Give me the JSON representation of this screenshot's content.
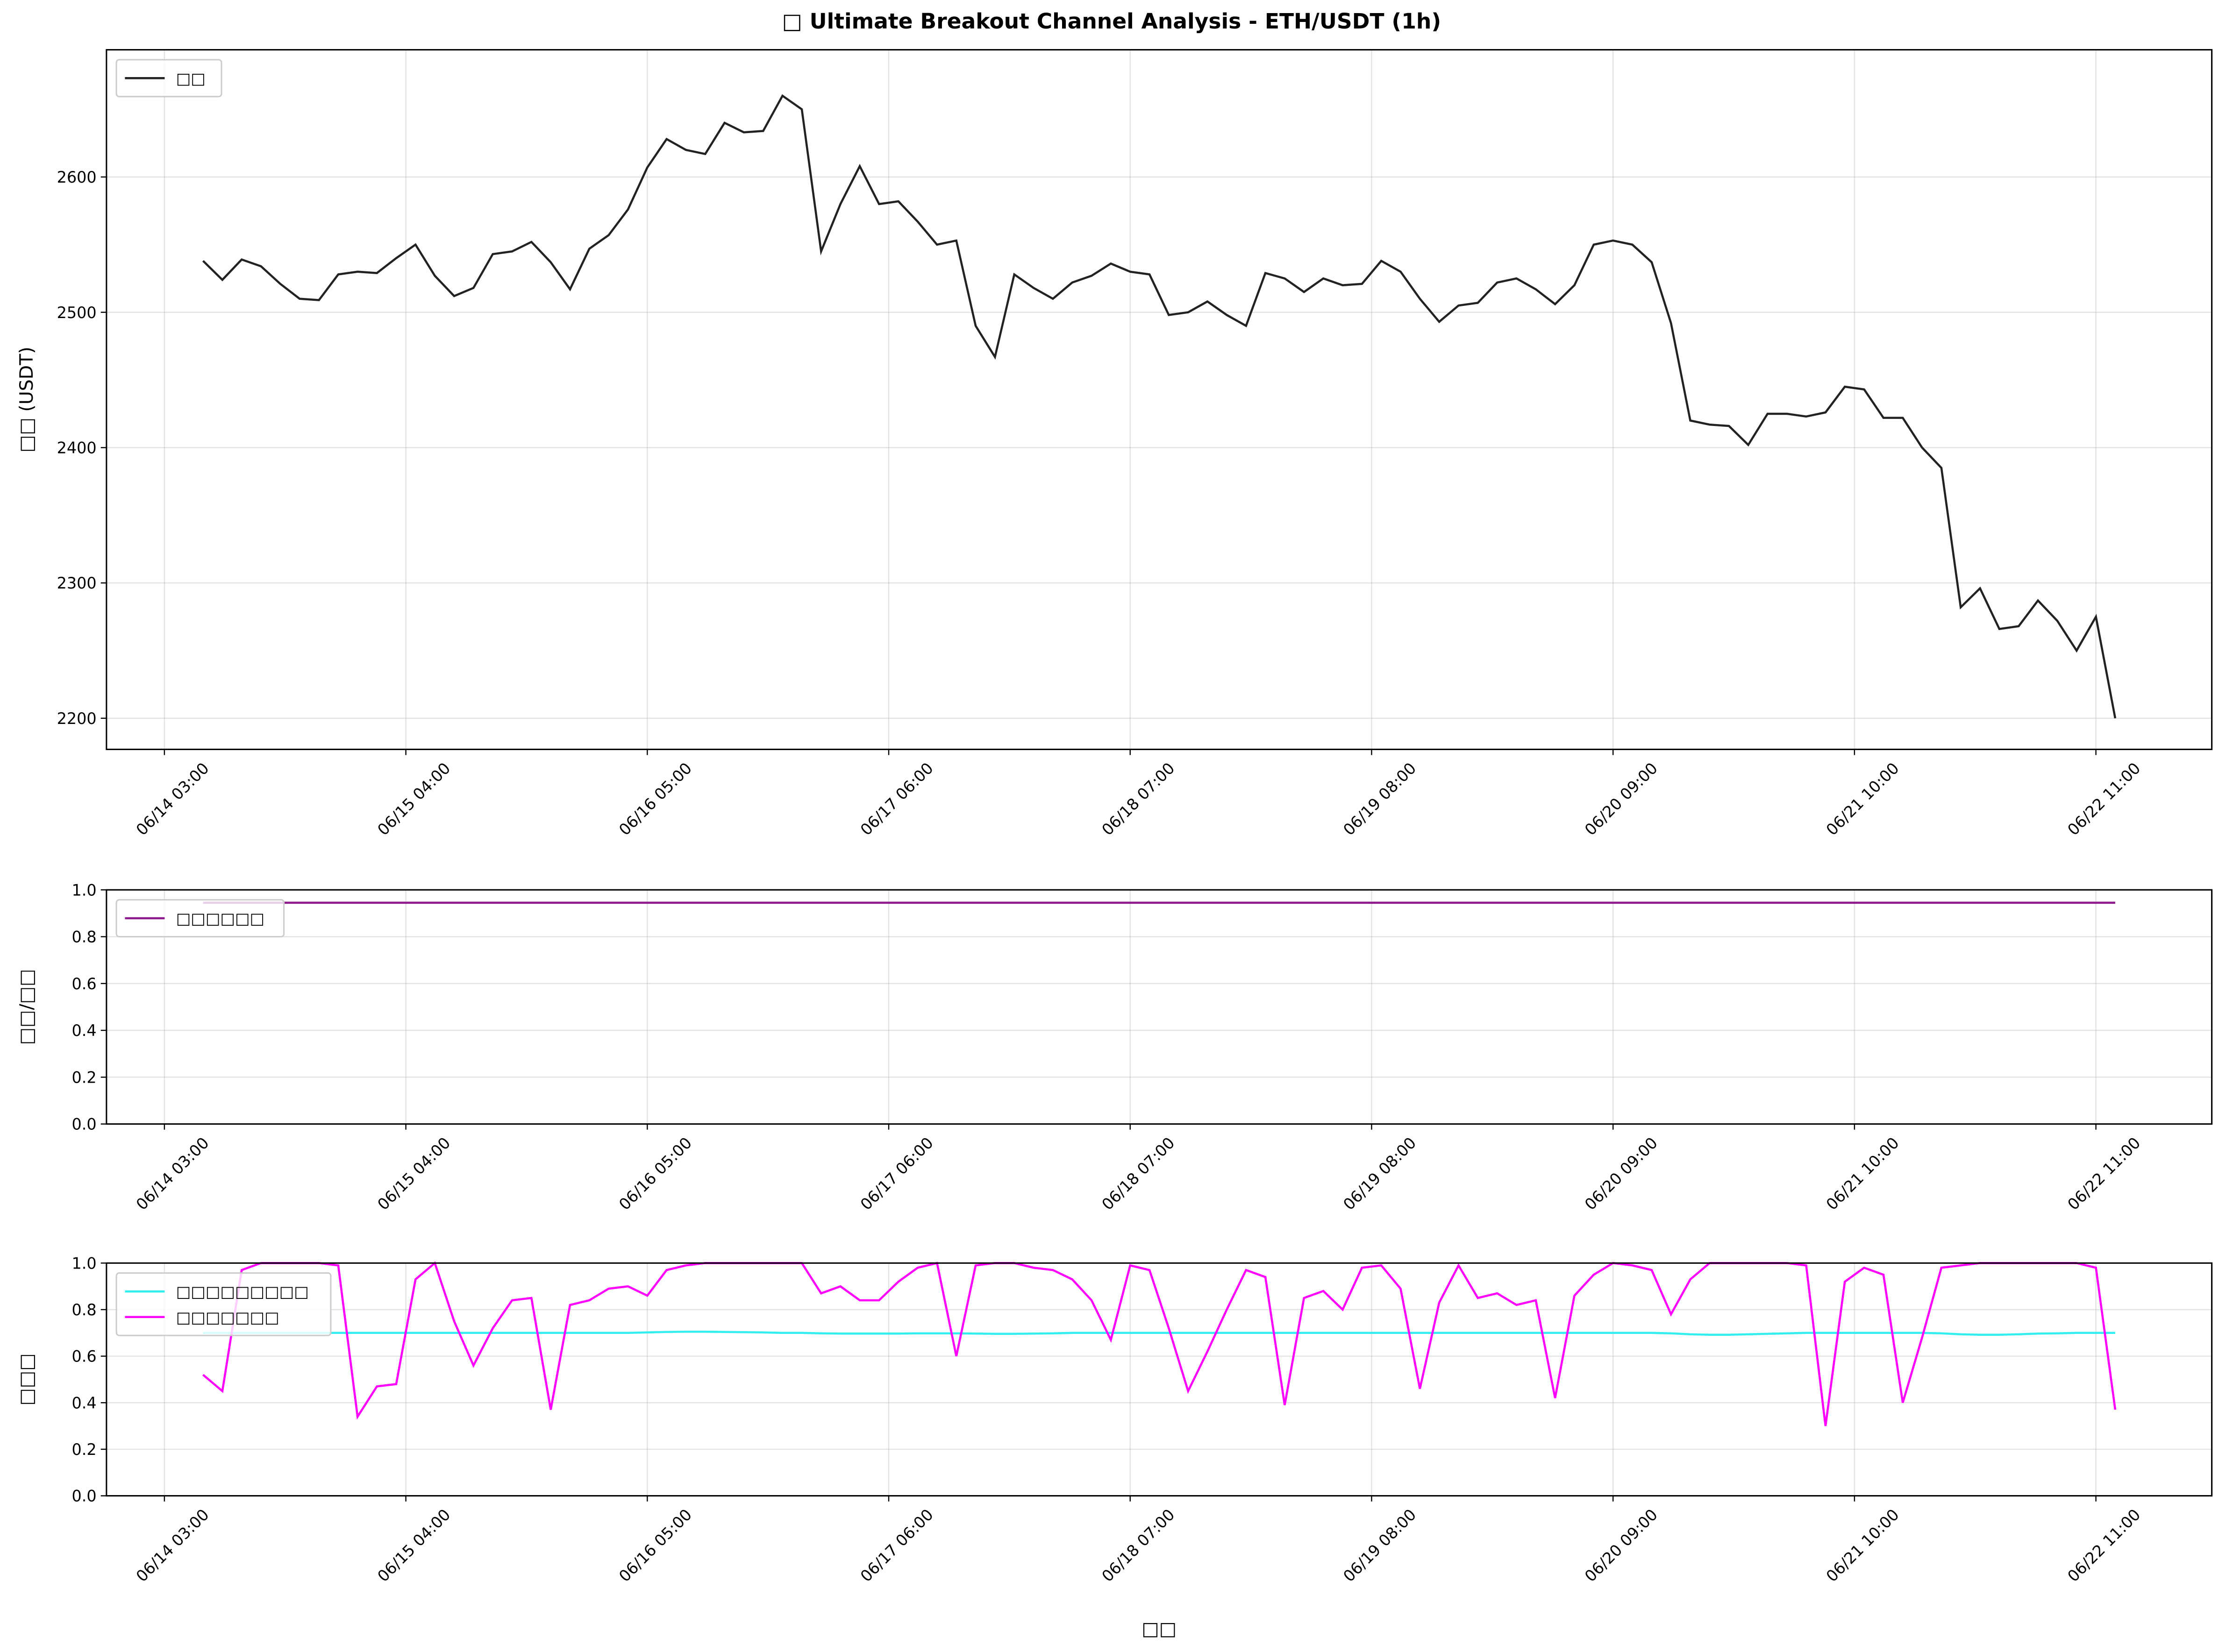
{
  "chart_data": [
    {
      "type": "line",
      "title": "□ Ultimate Breakout Channel Analysis - ETH/USDT (1h)",
      "ylabel": "□□ (USDT)",
      "xlim": [
        "06/13 21:00",
        "06/22 23:00"
      ],
      "xticks": [
        "06/14 03:00",
        "06/15 04:00",
        "06/16 05:00",
        "06/17 06:00",
        "06/18 07:00",
        "06/19 08:00",
        "06/20 09:00",
        "06/21 10:00",
        "06/22 11:00"
      ],
      "ylim": [
        2177,
        2694
      ],
      "yticks": [
        2200,
        2300,
        2400,
        2500,
        2600
      ],
      "grid": true,
      "legend": "upper left",
      "x": [
        "06/14 07:00",
        "06/14 09:00",
        "06/14 11:00",
        "06/14 13:00",
        "06/14 15:00",
        "06/14 17:00",
        "06/14 19:00",
        "06/14 21:00",
        "06/14 23:00",
        "06/15 01:00",
        "06/15 03:00",
        "06/15 05:00",
        "06/15 07:00",
        "06/15 09:00",
        "06/15 11:00",
        "06/15 13:00",
        "06/15 15:00",
        "06/15 17:00",
        "06/15 19:00",
        "06/15 21:00",
        "06/15 23:00",
        "06/16 01:00",
        "06/16 03:00",
        "06/16 05:00",
        "06/16 07:00",
        "06/16 09:00",
        "06/16 11:00",
        "06/16 13:00",
        "06/16 15:00",
        "06/16 17:00",
        "06/16 19:00",
        "06/16 21:00",
        "06/16 23:00",
        "06/17 01:00",
        "06/17 03:00",
        "06/17 05:00",
        "06/17 07:00",
        "06/17 09:00",
        "06/17 11:00",
        "06/17 13:00",
        "06/17 15:00",
        "06/17 17:00",
        "06/17 19:00",
        "06/17 21:00",
        "06/17 23:00",
        "06/18 01:00",
        "06/18 03:00",
        "06/18 05:00",
        "06/18 07:00",
        "06/18 09:00",
        "06/18 11:00",
        "06/18 13:00",
        "06/18 15:00",
        "06/18 17:00",
        "06/18 19:00",
        "06/18 21:00",
        "06/18 23:00",
        "06/19 01:00",
        "06/19 03:00",
        "06/19 05:00",
        "06/19 07:00",
        "06/19 09:00",
        "06/19 11:00",
        "06/19 13:00",
        "06/19 15:00",
        "06/19 17:00",
        "06/19 19:00",
        "06/19 21:00",
        "06/19 23:00",
        "06/20 01:00",
        "06/20 03:00",
        "06/20 05:00",
        "06/20 07:00",
        "06/20 09:00",
        "06/20 11:00",
        "06/20 13:00",
        "06/20 15:00",
        "06/20 17:00",
        "06/20 19:00",
        "06/20 21:00",
        "06/20 23:00",
        "06/21 01:00",
        "06/21 03:00",
        "06/21 05:00",
        "06/21 07:00",
        "06/21 09:00",
        "06/21 11:00",
        "06/21 13:00",
        "06/21 15:00",
        "06/21 17:00",
        "06/21 19:00",
        "06/21 21:00",
        "06/21 23:00",
        "06/22 01:00",
        "06/22 03:00",
        "06/22 05:00",
        "06/22 07:00",
        "06/22 09:00",
        "06/22 11:00",
        "06/22 13:00"
      ],
      "series": [
        {
          "name": "□□",
          "color": "#222222",
          "values": [
            2538,
            2524,
            2539,
            2534,
            2521,
            2510,
            2509,
            2528,
            2530,
            2529,
            2540,
            2550,
            2527,
            2512,
            2518,
            2543,
            2545,
            2552,
            2537,
            2517,
            2547,
            2557,
            2576,
            2607,
            2628,
            2620,
            2617,
            2640,
            2633,
            2634,
            2660,
            2650,
            2545,
            2580,
            2608,
            2580,
            2582,
            2567,
            2550,
            2553,
            2490,
            2467,
            2528,
            2518,
            2510,
            2522,
            2527,
            2536,
            2530,
            2528,
            2498,
            2500,
            2508,
            2498,
            2490,
            2529,
            2525,
            2515,
            2525,
            2520,
            2521,
            2538,
            2530,
            2510,
            2493,
            2505,
            2507,
            2522,
            2525,
            2517,
            2506,
            2520,
            2550,
            2553,
            2550,
            2537,
            2492,
            2420,
            2417,
            2416,
            2402,
            2425,
            2425,
            2423,
            2426,
            2445,
            2443,
            2422,
            2422,
            2400,
            2385,
            2282,
            2296,
            2266,
            2268,
            2287,
            2272,
            2250,
            2275,
            2200
          ]
        }
      ]
    },
    {
      "type": "line",
      "ylabel": "□□/□□",
      "xlim": [
        "06/13 21:00",
        "06/22 23:00"
      ],
      "xticks": [
        "06/14 03:00",
        "06/15 04:00",
        "06/16 05:00",
        "06/17 06:00",
        "06/18 07:00",
        "06/19 08:00",
        "06/20 09:00",
        "06/21 10:00",
        "06/22 11:00"
      ],
      "ylim": [
        0,
        1
      ],
      "yticks": [
        {
          "value": 0,
          "label": "0.0"
        },
        {
          "value": 0.2,
          "label": "0.2"
        },
        {
          "value": 0.4,
          "label": "0.4"
        },
        {
          "value": 0.6,
          "label": "0.6"
        },
        {
          "value": 0.8,
          "label": "0.8"
        },
        {
          "value": 1,
          "label": "1.0"
        }
      ],
      "grid": true,
      "legend": "upper left",
      "x": [
        "06/14 07:00",
        "06/22 13:00"
      ],
      "series": [
        {
          "name": "□□□□□□",
          "color": "#8b1a8b",
          "values": [
            0.945,
            0.945
          ]
        }
      ]
    },
    {
      "type": "line",
      "ylabel": "□□□",
      "xlabel": "□□",
      "xlim": [
        "06/13 21:00",
        "06/22 23:00"
      ],
      "xticks": [
        "06/14 03:00",
        "06/15 04:00",
        "06/16 05:00",
        "06/17 06:00",
        "06/18 07:00",
        "06/19 08:00",
        "06/20 09:00",
        "06/21 10:00",
        "06/22 11:00"
      ],
      "ylim": [
        0,
        1
      ],
      "yticks": [
        {
          "value": 0,
          "label": "0.0"
        },
        {
          "value": 0.2,
          "label": "0.2"
        },
        {
          "value": 0.4,
          "label": "0.4"
        },
        {
          "value": 0.6,
          "label": "0.6"
        },
        {
          "value": 0.8,
          "label": "0.8"
        },
        {
          "value": 1,
          "label": "1.0"
        }
      ],
      "grid": true,
      "legend": "upper left",
      "x": [
        "06/14 07:00",
        "06/14 09:00",
        "06/14 11:00",
        "06/14 13:00",
        "06/14 15:00",
        "06/14 17:00",
        "06/14 19:00",
        "06/14 21:00",
        "06/14 23:00",
        "06/15 01:00",
        "06/15 03:00",
        "06/15 05:00",
        "06/15 07:00",
        "06/15 09:00",
        "06/15 11:00",
        "06/15 13:00",
        "06/15 15:00",
        "06/15 17:00",
        "06/15 19:00",
        "06/15 21:00",
        "06/15 23:00",
        "06/16 01:00",
        "06/16 03:00",
        "06/16 05:00",
        "06/16 07:00",
        "06/16 09:00",
        "06/16 11:00",
        "06/16 13:00",
        "06/16 15:00",
        "06/16 17:00",
        "06/16 19:00",
        "06/16 21:00",
        "06/16 23:00",
        "06/17 01:00",
        "06/17 03:00",
        "06/17 05:00",
        "06/17 07:00",
        "06/17 09:00",
        "06/17 11:00",
        "06/17 13:00",
        "06/17 15:00",
        "06/17 17:00",
        "06/17 19:00",
        "06/17 21:00",
        "06/17 23:00",
        "06/18 01:00",
        "06/18 03:00",
        "06/18 05:00",
        "06/18 07:00",
        "06/18 09:00",
        "06/18 11:00",
        "06/18 13:00",
        "06/18 15:00",
        "06/18 17:00",
        "06/18 19:00",
        "06/18 21:00",
        "06/18 23:00",
        "06/19 01:00",
        "06/19 03:00",
        "06/19 05:00",
        "06/19 07:00",
        "06/19 09:00",
        "06/19 11:00",
        "06/19 13:00",
        "06/19 15:00",
        "06/19 17:00",
        "06/19 19:00",
        "06/19 21:00",
        "06/19 23:00",
        "06/20 01:00",
        "06/20 03:00",
        "06/20 05:00",
        "06/20 07:00",
        "06/20 09:00",
        "06/20 11:00",
        "06/20 13:00",
        "06/20 15:00",
        "06/20 17:00",
        "06/20 19:00",
        "06/20 21:00",
        "06/20 23:00",
        "06/21 01:00",
        "06/21 03:00",
        "06/21 05:00",
        "06/21 07:00",
        "06/21 09:00",
        "06/21 11:00",
        "06/21 13:00",
        "06/21 15:00",
        "06/21 17:00",
        "06/21 19:00",
        "06/21 21:00",
        "06/21 23:00",
        "06/22 01:00",
        "06/22 03:00",
        "06/22 05:00",
        "06/22 07:00",
        "06/22 09:00",
        "06/22 11:00",
        "06/22 13:00"
      ],
      "series": [
        {
          "name": "□□□□□□□□□",
          "color": "#33eeee",
          "values": [
            0.7,
            0.7,
            0.7,
            0.7,
            0.7,
            0.7,
            0.7,
            0.7,
            0.7,
            0.7,
            0.7,
            0.7,
            0.7,
            0.7,
            0.7,
            0.7,
            0.7,
            0.7,
            0.7,
            0.7,
            0.7,
            0.7,
            0.7,
            0.702,
            0.704,
            0.705,
            0.705,
            0.704,
            0.703,
            0.702,
            0.7,
            0.7,
            0.698,
            0.697,
            0.697,
            0.697,
            0.697,
            0.698,
            0.698,
            0.698,
            0.697,
            0.696,
            0.696,
            0.697,
            0.698,
            0.7,
            0.7,
            0.7,
            0.7,
            0.7,
            0.7,
            0.7,
            0.7,
            0.7,
            0.7,
            0.7,
            0.7,
            0.7,
            0.7,
            0.7,
            0.7,
            0.7,
            0.7,
            0.7,
            0.7,
            0.7,
            0.7,
            0.7,
            0.7,
            0.7,
            0.7,
            0.7,
            0.7,
            0.7,
            0.7,
            0.7,
            0.698,
            0.694,
            0.692,
            0.692,
            0.694,
            0.696,
            0.698,
            0.7,
            0.7,
            0.7,
            0.7,
            0.7,
            0.7,
            0.7,
            0.698,
            0.694,
            0.692,
            0.692,
            0.694,
            0.697,
            0.698,
            0.7,
            0.7,
            0.7
          ]
        },
        {
          "name": "□□□□□□□",
          "color": "#ff00ff",
          "values": [
            0.52,
            0.45,
            0.97,
            1.0,
            1.0,
            1.0,
            1.0,
            0.99,
            0.34,
            0.47,
            0.48,
            0.93,
            1.0,
            0.75,
            0.56,
            0.72,
            0.84,
            0.85,
            0.37,
            0.82,
            0.84,
            0.89,
            0.9,
            0.86,
            0.97,
            0.99,
            1.0,
            1.0,
            1.0,
            1.0,
            1.0,
            1.0,
            0.87,
            0.9,
            0.84,
            0.84,
            0.92,
            0.98,
            1.0,
            0.6,
            0.99,
            1.0,
            1.0,
            0.98,
            0.97,
            0.93,
            0.84,
            0.67,
            0.99,
            0.97,
            0.72,
            0.45,
            0.62,
            0.8,
            0.97,
            0.94,
            0.39,
            0.85,
            0.88,
            0.8,
            0.98,
            0.99,
            0.89,
            0.46,
            0.83,
            0.99,
            0.85,
            0.87,
            0.82,
            0.84,
            0.42,
            0.86,
            0.95,
            1.0,
            0.99,
            0.97,
            0.78,
            0.93,
            1.0,
            1.0,
            1.0,
            1.0,
            1.0,
            0.99,
            0.3,
            0.92,
            0.98,
            0.95,
            0.4,
            0.68,
            0.98,
            0.99,
            1.0,
            1.0,
            1.0,
            1.0,
            1.0,
            1.0,
            0.98,
            0.37
          ]
        }
      ]
    }
  ]
}
